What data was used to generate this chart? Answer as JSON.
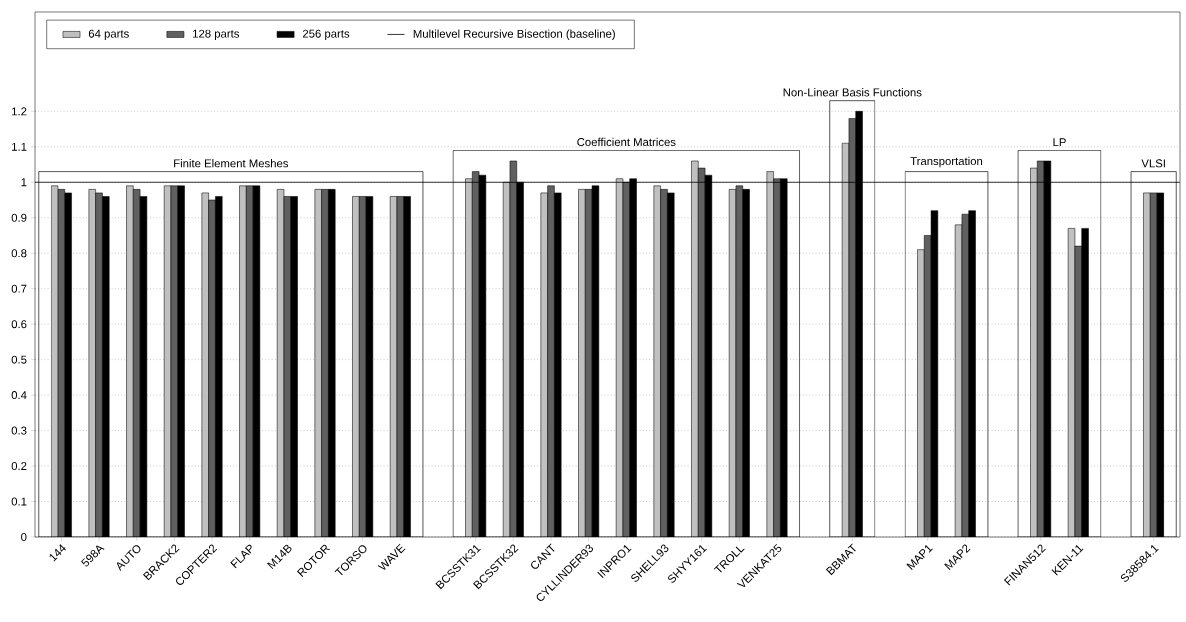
{
  "chart_data": {
    "type": "bar",
    "categories": [
      "144",
      "598A",
      "AUTO",
      "BRACK2",
      "COPTER2",
      "FLAP",
      "M14B",
      "ROTOR",
      "TORSO",
      "WAVE",
      null,
      "BCSSTK31",
      "BCSSTK32",
      "CANT",
      "CYLLINDER93",
      "INPRO1",
      "SHELL93",
      "SHYY161",
      "TROLL",
      "VENKAT25",
      null,
      "BBMAT",
      null,
      "MAP1",
      "MAP2",
      null,
      "FINAN512",
      "KEN-11",
      null,
      "S38584.1"
    ],
    "series": [
      {
        "name": "64 parts",
        "color": "#c0c0c0",
        "values": [
          0.99,
          0.98,
          0.99,
          0.99,
          0.97,
          0.99,
          0.98,
          0.98,
          0.96,
          0.96,
          null,
          1.01,
          1.0,
          0.97,
          0.98,
          1.01,
          0.99,
          1.06,
          0.98,
          1.03,
          null,
          1.11,
          null,
          0.81,
          0.88,
          null,
          1.04,
          0.87,
          null,
          0.97
        ]
      },
      {
        "name": "128 parts",
        "color": "#606060",
        "values": [
          0.98,
          0.97,
          0.98,
          0.99,
          0.95,
          0.99,
          0.96,
          0.98,
          0.96,
          0.96,
          null,
          1.03,
          1.06,
          0.99,
          0.98,
          1.0,
          0.98,
          1.04,
          0.99,
          1.01,
          null,
          1.18,
          null,
          0.85,
          0.91,
          null,
          1.06,
          0.82,
          null,
          0.97
        ]
      },
      {
        "name": "256 parts",
        "color": "#000000",
        "values": [
          0.97,
          0.96,
          0.96,
          0.99,
          0.96,
          0.99,
          0.96,
          0.98,
          0.96,
          0.96,
          null,
          1.02,
          1.0,
          0.97,
          0.99,
          1.01,
          0.97,
          1.02,
          0.98,
          1.01,
          null,
          1.2,
          null,
          0.92,
          0.92,
          null,
          1.06,
          0.87,
          null,
          0.97
        ]
      }
    ],
    "ylim": [
      0,
      1.48
    ],
    "yticks": [
      0,
      0.1,
      0.2,
      0.3,
      0.4,
      0.5,
      0.6,
      0.7,
      0.8,
      0.9,
      1,
      1.1,
      1.2
    ],
    "grid": "y",
    "legend": "top",
    "ref_lines": [
      {
        "axis": "y",
        "value": 1,
        "label": "Multilevel Recursive Bisection (baseline)",
        "color": "#000000"
      }
    ],
    "annotations": [
      "Finite Element Meshes",
      "Coefficient Matrices",
      "Non-Linear Basis Functions",
      "Transportation",
      "LP",
      "VLSI"
    ]
  }
}
